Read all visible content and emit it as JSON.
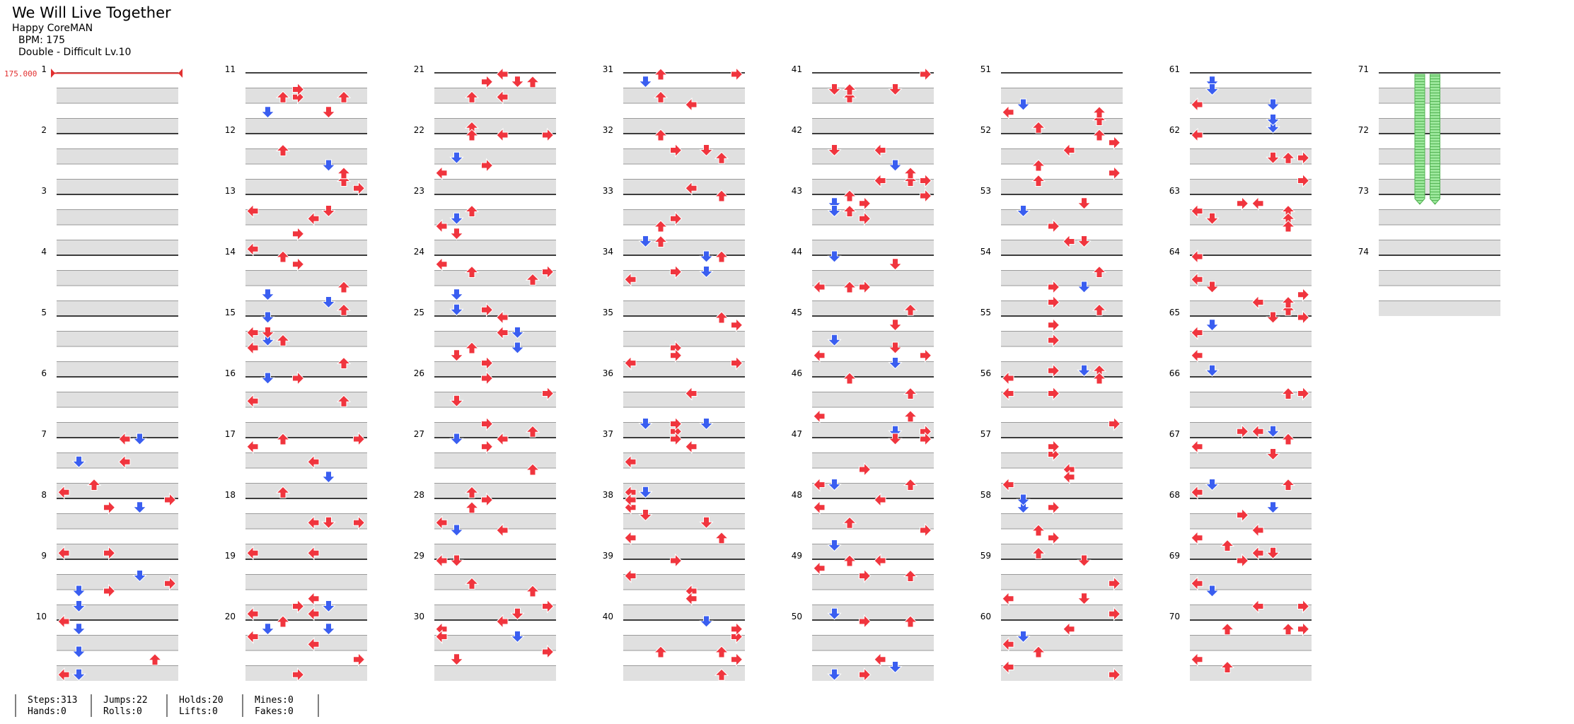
{
  "song": {
    "title": "We Will Live Together",
    "artist": "Happy CoreMAN",
    "bpm_label": "BPM: 175",
    "difficulty_label": "Double - Difficult Lv.10"
  },
  "bpm_marker": "175.000",
  "colors": {
    "red_arrow": "#f0353e",
    "blue_arrow": "#3a5ef0",
    "hold_green": "#9be79b",
    "band_gray": "#e0e0e0",
    "bpm_red": "#e23030"
  },
  "measure_labels": [
    "1",
    "2",
    "3",
    "4",
    "5",
    "6",
    "7",
    "8",
    "9",
    "10",
    "11",
    "12",
    "13",
    "14",
    "15",
    "16",
    "17",
    "18",
    "19",
    "20",
    "21",
    "22",
    "23",
    "24",
    "25",
    "26",
    "27",
    "28",
    "29",
    "30",
    "31",
    "32",
    "33",
    "34",
    "35",
    "36",
    "37",
    "38",
    "39",
    "40",
    "41",
    "42",
    "43",
    "44",
    "45",
    "46",
    "47",
    "48",
    "49",
    "50",
    "51",
    "52",
    "53",
    "54",
    "55",
    "56",
    "57",
    "58",
    "59",
    "60",
    "61",
    "62",
    "63",
    "64",
    "65",
    "66",
    "67",
    "68",
    "69",
    "70",
    "71",
    "72",
    "73",
    "74"
  ],
  "stats": {
    "steps": "Steps:313",
    "hands": "Hands:0",
    "jumps": "Jumps:22",
    "rolls": "Rolls:0",
    "holds": "Holds:20",
    "lifts": "Lifts:0",
    "mines": "Mines:0",
    "fakes": "Fakes:0"
  }
}
